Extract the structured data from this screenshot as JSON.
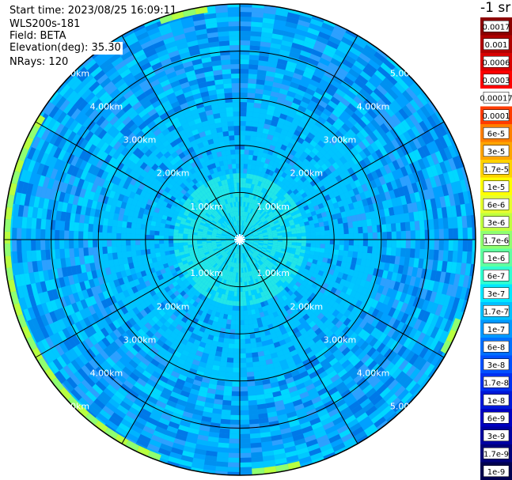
{
  "header": {
    "start_time": "Start time: 2023/08/25 16:09:11",
    "instrument": "WLS200s-181",
    "field": "Field: BETA",
    "elevation": "Elevation(deg): 35.30",
    "nrays": "NRays: 120"
  },
  "colorbar": {
    "units": "-1 sr",
    "labels": [
      "0.0017",
      "0.001",
      "0.0006",
      "0.0003",
      "0.00017",
      "0.0001",
      "6e-5",
      "3e-5",
      "1.7e-5",
      "1e-5",
      "6e-6",
      "3e-6",
      "1.7e-6",
      "1e-6",
      "6e-7",
      "3e-7",
      "1.7e-7",
      "1e-7",
      "6e-8",
      "3e-8",
      "1.7e-8",
      "1e-8",
      "6e-9",
      "3e-9",
      "1.7e-9",
      "1e-9"
    ],
    "colors": [
      "#8c0000",
      "#b00000",
      "#d80000",
      "#ff0000",
      "#ffffff",
      "#ff3c00",
      "#ff7f00",
      "#ffa500",
      "#ffd200",
      "#ffff00",
      "#e6ff2e",
      "#c0ff40",
      "#90ff70",
      "#60ffa0",
      "#30ffd0",
      "#00e8ff",
      "#00c0ff",
      "#0098ff",
      "#0070ff",
      "#0050ff",
      "#0030f0",
      "#0018d8",
      "#0000c0",
      "#0000a0",
      "#00007a",
      "#000050"
    ]
  },
  "range_rings": {
    "labels": [
      "1.00km",
      "2.00km",
      "3.00km",
      "4.00km",
      "5.00km"
    ]
  }
}
